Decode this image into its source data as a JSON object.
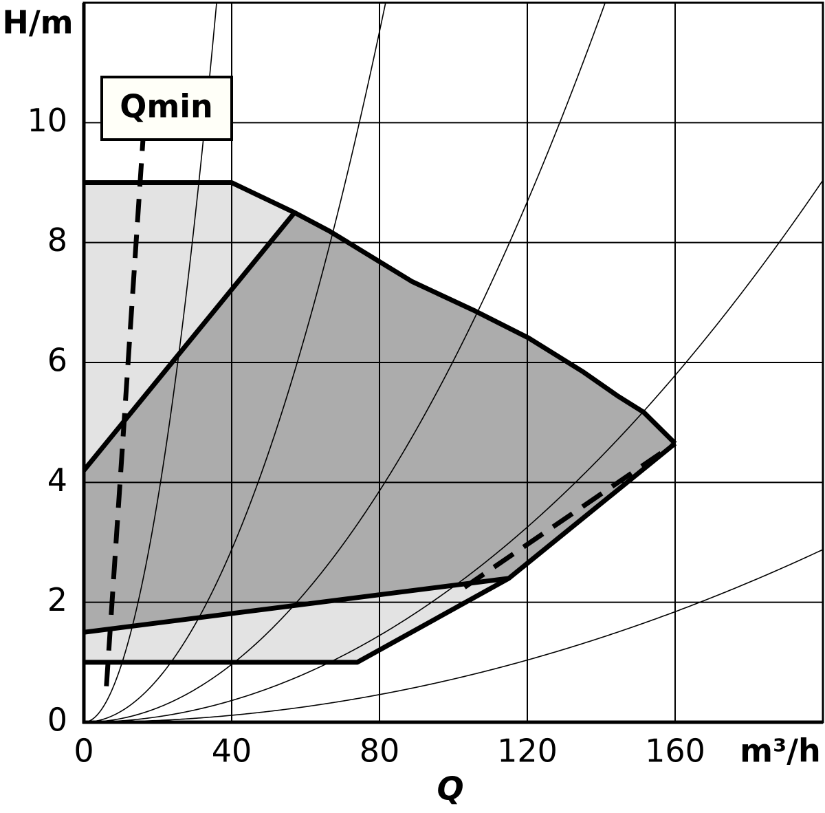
{
  "chart_data": {
    "type": "area",
    "y_label": "H/m",
    "x_label": "Q",
    "x_unit": "m³/h",
    "annotation": "Qmin",
    "xlim": [
      0,
      200
    ],
    "ylim": [
      0,
      12
    ],
    "xticks": [
      0,
      40,
      80,
      120,
      160
    ],
    "yticks": [
      0,
      2,
      4,
      6,
      8,
      10
    ],
    "grid": true,
    "regions": [
      {
        "color": "#e3e3e3",
        "x": [
          0,
          40,
          57,
          66.5,
          88.8,
          105.5,
          120.3,
          135.2,
          144.5,
          151.5,
          160,
          115,
          74,
          0
        ],
        "values": [
          9,
          9,
          8.5,
          8.19,
          7.35,
          6.87,
          6.41,
          5.84,
          5.44,
          5.17,
          4.65,
          2.4,
          1,
          1
        ]
      },
      {
        "color": "#acacac",
        "x": [
          0,
          57,
          66.5,
          88.8,
          105.5,
          120.3,
          135.2,
          144.5,
          151.5,
          160,
          115,
          0
        ],
        "values": [
          4.2,
          8.5,
          8.19,
          7.35,
          6.87,
          6.41,
          5.84,
          5.44,
          5.17,
          4.65,
          2.4,
          1.5
        ]
      }
    ],
    "system_curves": [
      {
        "k": 0.0093
      },
      {
        "k": 0.0018
      },
      {
        "k": 0.000603
      },
      {
        "k": 0.000226
      },
      {
        "k": 7.2e-05
      }
    ],
    "lines": [
      {
        "color": "#000000",
        "dashed": false,
        "x": [
          0,
          40,
          57,
          66.5,
          88.8,
          105.5,
          120.3,
          135.2,
          144.5,
          151.5,
          160
        ],
        "values": [
          9,
          9,
          8.5,
          8.19,
          7.35,
          6.87,
          6.41,
          5.84,
          5.44,
          5.17,
          4.65
        ]
      },
      {
        "color": "#000000",
        "dashed": false,
        "x": [
          0,
          74,
          115,
          160
        ],
        "values": [
          1,
          1,
          2.4,
          4.65
        ]
      },
      {
        "color": "#000000",
        "dashed": false,
        "x": [
          0,
          57
        ],
        "values": [
          4.2,
          8.5
        ]
      },
      {
        "color": "#000000",
        "dashed": false,
        "x": [
          0,
          115
        ],
        "values": [
          1.5,
          2.4
        ]
      },
      {
        "color": "#000000",
        "dashed": true,
        "x": [
          6.1,
          16.3
        ],
        "values": [
          0.6,
          10
        ]
      },
      {
        "color": "#000000",
        "dashed": true,
        "x": [
          103,
          160
        ],
        "values": [
          2.25,
          4.65
        ]
      }
    ]
  }
}
